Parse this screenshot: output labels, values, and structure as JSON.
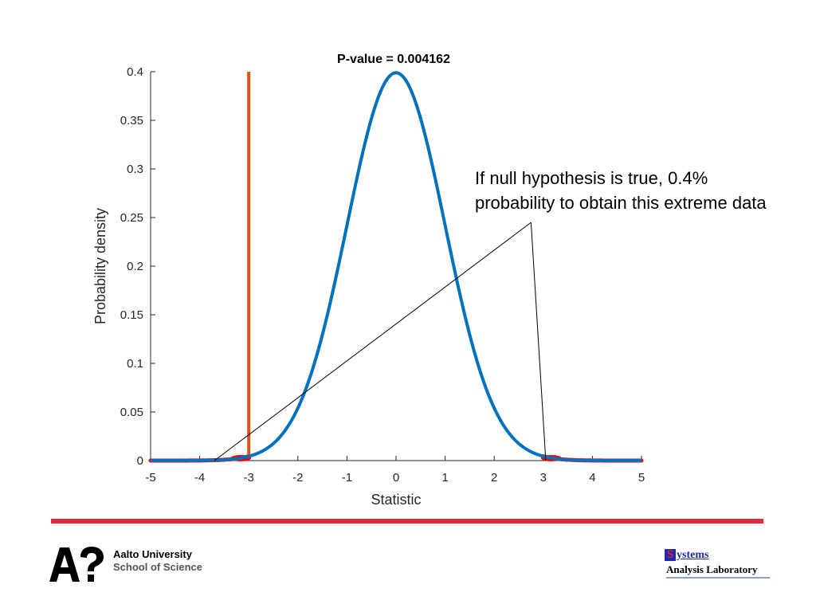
{
  "chart_data": {
    "type": "line",
    "title": "P-value = 0.004162",
    "xlabel": "Statistic",
    "ylabel": "Probability density",
    "xlim": [
      -5,
      5
    ],
    "ylim": [
      0,
      0.4
    ],
    "xticks": [
      -5,
      -4,
      -3,
      -2,
      -1,
      0,
      1,
      2,
      3,
      4,
      5
    ],
    "xtick_labels": [
      "-5",
      "-4",
      "-3",
      "-2",
      "-1",
      "0",
      "1",
      "2",
      "3",
      "4",
      "5"
    ],
    "yticks": [
      0,
      0.05,
      0.1,
      0.15,
      0.2,
      0.25,
      0.3,
      0.35,
      0.4
    ],
    "ytick_labels": [
      "0",
      "0.05",
      "0.1",
      "0.15",
      "0.2",
      "0.25",
      "0.3",
      "0.35",
      "0.4"
    ],
    "grid": false,
    "series": [
      {
        "kind": "density-curve",
        "distribution": "standard normal",
        "mean": 0,
        "sd": 1,
        "color": "#0072bd"
      }
    ],
    "observed_statistic": -3.0,
    "observed_line_color": "#d95319",
    "tail_regions": [
      {
        "side": "left",
        "from": -5,
        "to": -3.0,
        "color": "#ff0000"
      },
      {
        "side": "right",
        "from": 3.0,
        "to": 5,
        "color": "#ff0000"
      }
    ],
    "annotation": {
      "lines": [
        "If null hypothesis is true, 0.4%",
        "probability to obtain this extreme data"
      ],
      "pointer_anchor": {
        "x": 2.75,
        "y": 0.245
      },
      "pointer_targets": [
        {
          "x": -3.7,
          "y": 0.0
        },
        {
          "x": 3.05,
          "y": 0.0
        }
      ]
    }
  },
  "footer": {
    "rule_color": "#e52a3a",
    "aalto": {
      "line1": "Aalto University",
      "line2": "School of Science"
    },
    "sal": {
      "initial": "S",
      "rest": "ystems",
      "line2": "Analysis Laboratory"
    }
  }
}
